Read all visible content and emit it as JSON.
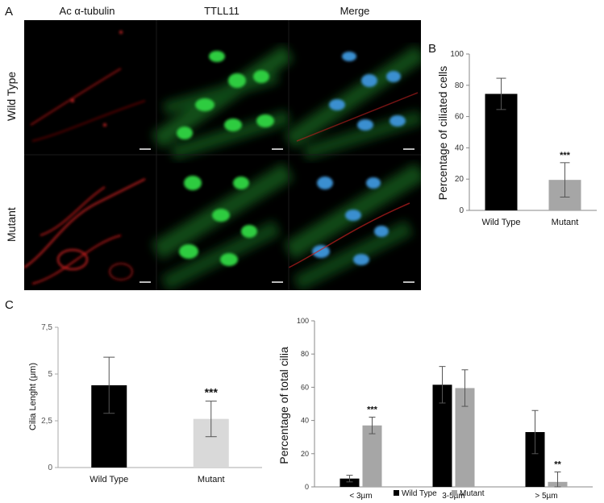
{
  "panels": {
    "a": "A",
    "b": "B",
    "c": "C"
  },
  "microscopy": {
    "columns": [
      "Ac α-tubulin",
      "TTLL11",
      "Merge"
    ],
    "rows": [
      "Wild Type",
      "Mutant"
    ],
    "colors": {
      "red": "#ff2a2a",
      "green": "#22c43a",
      "blue": "#2a7fff"
    }
  },
  "chart_data": [
    {
      "type": "bar",
      "panel": "B",
      "categories": [
        "Wild Type",
        "Mutant"
      ],
      "values": [
        74.5,
        19.5
      ],
      "errors": [
        10,
        11
      ],
      "ylabel": "Percentage of ciliated cells",
      "ylim": [
        0,
        100
      ],
      "yticks": [
        "0",
        "20",
        "40",
        "60",
        "80",
        "100"
      ],
      "annotations": [
        "",
        "***"
      ],
      "colors": [
        "#000000",
        "#a6a6a6"
      ]
    },
    {
      "type": "bar",
      "panel": "C-left",
      "categories": [
        "Wild Type",
        "Mutant"
      ],
      "values": [
        4.4,
        2.6
      ],
      "errors": [
        1.5,
        0.95
      ],
      "ylabel": "Cilia Lenght (μm)",
      "ylim": [
        0,
        7.5
      ],
      "yticks": [
        "0",
        "2,5",
        "5",
        "7,5"
      ],
      "annotations": [
        "",
        "***"
      ],
      "colors": [
        "#000000",
        "#d9d9d9"
      ]
    },
    {
      "type": "bar",
      "panel": "C-right",
      "categories": [
        "< 3µm",
        "3-5µm",
        "> 5µm"
      ],
      "series": [
        {
          "name": "Wild Type",
          "values": [
            5,
            61.5,
            33
          ],
          "errors": [
            2,
            11,
            13
          ],
          "color": "#000000"
        },
        {
          "name": "Mutant",
          "values": [
            37,
            59.5,
            3
          ],
          "errors": [
            5,
            11,
            6
          ],
          "color": "#a6a6a6"
        }
      ],
      "ylabel": "Percentage of total cilia",
      "ylim": [
        0,
        100
      ],
      "yticks": [
        "0",
        "20",
        "40",
        "60",
        "80",
        "100"
      ],
      "annotations": [
        {
          "category": "< 3µm",
          "series": "Mutant",
          "text": "***"
        },
        {
          "category": "> 5µm",
          "series": "Mutant",
          "text": "**"
        }
      ],
      "legend": "bottom"
    }
  ]
}
